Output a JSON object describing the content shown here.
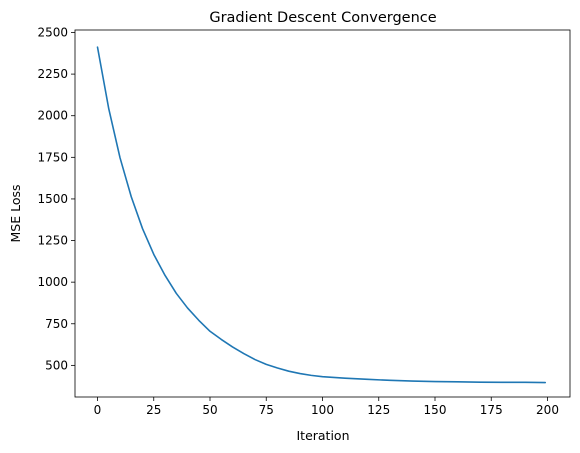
{
  "chart_data": {
    "type": "line",
    "title": "Gradient Descent Convergence",
    "xlabel": "Iteration",
    "ylabel": "MSE Loss",
    "xlim": [
      -10,
      210
    ],
    "ylim": [
      310,
      2515
    ],
    "xticks": [
      0,
      25,
      50,
      75,
      100,
      125,
      150,
      175,
      200
    ],
    "yticks": [
      500,
      750,
      1000,
      1250,
      1500,
      1750,
      2000,
      2250,
      2500
    ],
    "grid": false,
    "legend": "none",
    "series": [
      {
        "color": "#1f77b4",
        "x": [
          0,
          5,
          10,
          15,
          20,
          25,
          30,
          35,
          40,
          45,
          50,
          55,
          60,
          65,
          70,
          75,
          80,
          85,
          90,
          95,
          100,
          110,
          120,
          130,
          140,
          150,
          160,
          170,
          180,
          190,
          199
        ],
        "y": [
          2412,
          2042,
          1748,
          1513,
          1322,
          1167,
          1041,
          933,
          845,
          771,
          705,
          656,
          611,
          571,
          535,
          506,
          484,
          465,
          451,
          440,
          432,
          423,
          416,
          410,
          406,
          403,
          401,
          399,
          398,
          398,
          397
        ]
      }
    ]
  }
}
